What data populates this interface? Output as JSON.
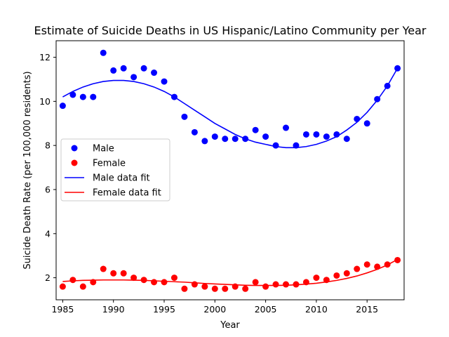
{
  "chart_data": {
    "type": "scatter",
    "title": "Estimate of Suicide Deaths in US Hispanic/Latino Community per Year",
    "xlabel": "Year",
    "ylabel": "Suicide Death Rate (per 100,000 residents)",
    "xlim": [
      1984.35,
      2018.65
    ],
    "ylim": [
      1.0,
      12.75
    ],
    "xticks": [
      1985,
      1990,
      1995,
      2000,
      2005,
      2010,
      2015
    ],
    "yticks": [
      2,
      4,
      6,
      8,
      10,
      12
    ],
    "grid": false,
    "legend_position": "center-left",
    "series": [
      {
        "name": "Male",
        "kind": "scatter",
        "color": "#0000ff",
        "x": [
          1985,
          1986,
          1987,
          1988,
          1989,
          1990,
          1991,
          1992,
          1993,
          1994,
          1995,
          1996,
          1997,
          1998,
          1999,
          2000,
          2001,
          2002,
          2003,
          2004,
          2005,
          2006,
          2007,
          2008,
          2009,
          2010,
          2011,
          2012,
          2013,
          2014,
          2015,
          2016,
          2017,
          2018
        ],
        "y": [
          9.8,
          10.3,
          10.2,
          10.2,
          12.2,
          11.4,
          11.5,
          11.1,
          11.5,
          11.3,
          10.9,
          10.2,
          9.3,
          8.6,
          8.2,
          8.4,
          8.3,
          8.3,
          8.3,
          8.7,
          8.4,
          8.0,
          8.8,
          8.0,
          8.5,
          8.5,
          8.4,
          8.5,
          8.3,
          9.2,
          9.0,
          10.1,
          10.7,
          11.5
        ]
      },
      {
        "name": "Female",
        "kind": "scatter",
        "color": "#ff0000",
        "x": [
          1985,
          1986,
          1987,
          1988,
          1989,
          1990,
          1991,
          1992,
          1993,
          1994,
          1995,
          1996,
          1997,
          1998,
          1999,
          2000,
          2001,
          2002,
          2003,
          2004,
          2005,
          2006,
          2007,
          2008,
          2009,
          2010,
          2011,
          2012,
          2013,
          2014,
          2015,
          2016,
          2017,
          2018
        ],
        "y": [
          1.6,
          1.9,
          1.6,
          1.8,
          2.4,
          2.2,
          2.2,
          2.0,
          1.9,
          1.8,
          1.8,
          2.0,
          1.5,
          1.7,
          1.6,
          1.5,
          1.5,
          1.6,
          1.5,
          1.8,
          1.6,
          1.7,
          1.7,
          1.7,
          1.8,
          2.0,
          1.9,
          2.1,
          2.2,
          2.4,
          2.6,
          2.5,
          2.6,
          2.8
        ]
      },
      {
        "name": "Male data fit",
        "kind": "line",
        "color": "#0000ff",
        "x": [
          1985,
          1986,
          1987,
          1988,
          1989,
          1990,
          1991,
          1992,
          1993,
          1994,
          1995,
          1996,
          1997,
          1998,
          1999,
          2000,
          2001,
          2002,
          2003,
          2004,
          2005,
          2006,
          2007,
          2008,
          2009,
          2010,
          2011,
          2012,
          2013,
          2014,
          2015,
          2016,
          2017,
          2018
        ],
        "y": [
          10.2,
          10.45,
          10.65,
          10.8,
          10.9,
          10.95,
          10.95,
          10.9,
          10.8,
          10.65,
          10.45,
          10.2,
          9.9,
          9.6,
          9.3,
          9.0,
          8.75,
          8.5,
          8.3,
          8.15,
          8.05,
          7.95,
          7.9,
          7.9,
          7.95,
          8.05,
          8.2,
          8.4,
          8.7,
          9.05,
          9.5,
          10.05,
          10.7,
          11.5
        ]
      },
      {
        "name": "Female data fit",
        "kind": "line",
        "color": "#ff0000",
        "x": [
          1985,
          1986,
          1987,
          1988,
          1989,
          1990,
          1991,
          1992,
          1993,
          1994,
          1995,
          1996,
          1997,
          1998,
          1999,
          2000,
          2001,
          2002,
          2003,
          2004,
          2005,
          2006,
          2007,
          2008,
          2009,
          2010,
          2011,
          2012,
          2013,
          2014,
          2015,
          2016,
          2017,
          2018
        ],
        "y": [
          1.83,
          1.86,
          1.88,
          1.89,
          1.9,
          1.9,
          1.9,
          1.89,
          1.88,
          1.86,
          1.84,
          1.82,
          1.8,
          1.77,
          1.74,
          1.72,
          1.7,
          1.68,
          1.66,
          1.65,
          1.65,
          1.65,
          1.66,
          1.68,
          1.71,
          1.75,
          1.81,
          1.88,
          1.97,
          2.08,
          2.22,
          2.38,
          2.58,
          2.83
        ]
      }
    ]
  }
}
